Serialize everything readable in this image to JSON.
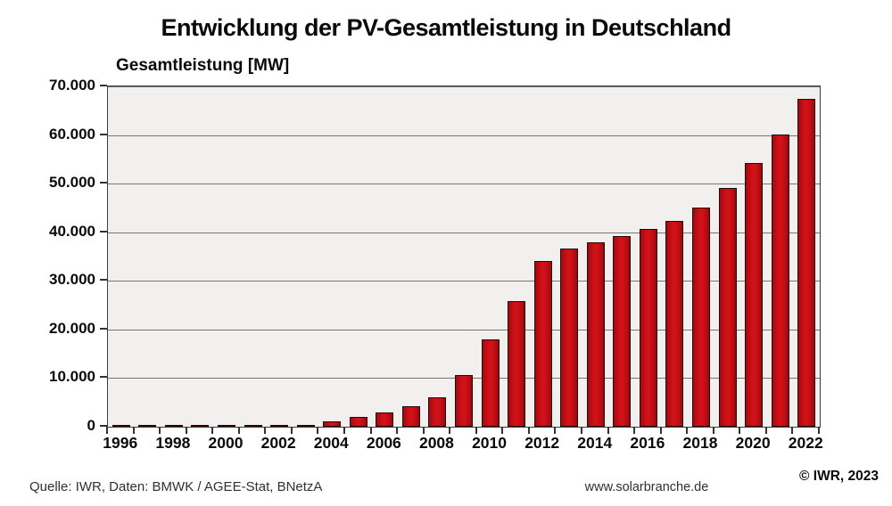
{
  "title": "Entwicklung der PV-Gesamtleistung in Deutschland",
  "footer": {
    "source": "Quelle: IWR, Daten: BMWK / AGEE-Stat, BNetzA",
    "website": "www.solarbranche.de",
    "copyright": "© IWR, 2023"
  },
  "chart_data": {
    "type": "bar",
    "title": "Entwicklung der PV-Gesamtleistung in Deutschland",
    "xlabel": "",
    "ylabel": "Gesamtleistung [MW]",
    "ylim": [
      0,
      70000
    ],
    "grid": true,
    "legend": "none",
    "bar_color": "#c60c12",
    "plot_background": "#f1f0ee",
    "categories": [
      1996,
      1997,
      1998,
      1999,
      2000,
      2001,
      2002,
      2003,
      2004,
      2005,
      2006,
      2007,
      2008,
      2009,
      2010,
      2011,
      2012,
      2013,
      2014,
      2015,
      2016,
      2017,
      2018,
      2019,
      2020,
      2021,
      2022
    ],
    "values": [
      28,
      42,
      54,
      70,
      114,
      176,
      296,
      435,
      1105,
      2056,
      2899,
      4170,
      6120,
      10566,
      18006,
      25916,
      34077,
      36710,
      37900,
      39224,
      40679,
      42293,
      45158,
      49096,
      54306,
      60056,
      67480
    ],
    "y_ticks": [
      0,
      10000,
      20000,
      30000,
      40000,
      50000,
      60000,
      70000
    ],
    "y_tick_labels": [
      "0",
      "10.000",
      "20.000",
      "30.000",
      "40.000",
      "50.000",
      "60.000",
      "70.000"
    ],
    "x_tick_labels": [
      "1996",
      "1998",
      "2000",
      "2002",
      "2004",
      "2006",
      "2008",
      "2010",
      "2012",
      "2014",
      "2016",
      "2018",
      "2020",
      "2022"
    ],
    "x_label_step": 2
  }
}
